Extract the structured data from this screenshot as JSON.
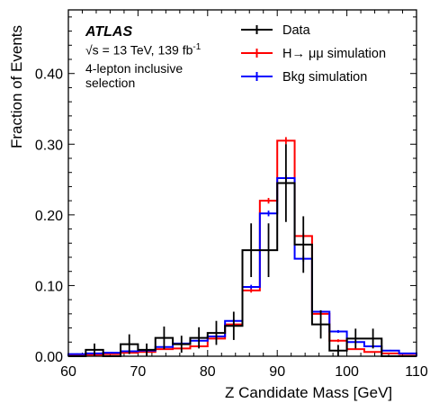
{
  "chart_data": {
    "type": "line",
    "drawstyle": "step-histogram",
    "xlabel": "Z Candidate Mass [GeV]",
    "ylabel": "Fraction of Events",
    "xlim": [
      60,
      110
    ],
    "ylim": [
      0,
      0.49
    ],
    "xticks": [
      "60",
      "70",
      "80",
      "90",
      "100",
      "110"
    ],
    "yticks": [
      "0.00",
      "0.10",
      "0.20",
      "0.30",
      "0.40"
    ],
    "legend_position": "top-right",
    "bin_edges": [
      60,
      62.5,
      65,
      67.5,
      70,
      72.5,
      75,
      77.5,
      80,
      82.5,
      85,
      87.5,
      90,
      92.5,
      95,
      97.5,
      100,
      102.5,
      105,
      107.5,
      110
    ],
    "series": [
      {
        "name": "Data",
        "color": "#000000",
        "values": [
          0.0,
          0.009,
          0.0,
          0.017,
          0.009,
          0.026,
          0.017,
          0.026,
          0.033,
          0.043,
          0.15,
          0.15,
          0.245,
          0.158,
          0.045,
          0.008,
          0.025,
          0.025,
          0.0,
          0.0
        ],
        "errors": [
          0.0,
          0.009,
          0.0,
          0.014,
          0.009,
          0.016,
          0.012,
          0.015,
          0.017,
          0.02,
          0.038,
          0.038,
          0.055,
          0.04,
          0.02,
          0.008,
          0.014,
          0.014,
          0.0,
          0.0
        ]
      },
      {
        "name": "H→ μμ simulation",
        "color": "#ff0000",
        "values": [
          0.002,
          0.002,
          0.003,
          0.005,
          0.006,
          0.01,
          0.011,
          0.014,
          0.025,
          0.045,
          0.093,
          0.22,
          0.305,
          0.17,
          0.06,
          0.022,
          0.01,
          0.006,
          0.004,
          0.003
        ],
        "errors": [
          0.001,
          0.001,
          0.001,
          0.001,
          0.001,
          0.001,
          0.001,
          0.001,
          0.002,
          0.002,
          0.003,
          0.004,
          0.005,
          0.004,
          0.002,
          0.002,
          0.001,
          0.001,
          0.001,
          0.001
        ]
      },
      {
        "name": "Bkg simulation",
        "color": "#0000ff",
        "values": [
          0.003,
          0.004,
          0.005,
          0.007,
          0.008,
          0.013,
          0.018,
          0.022,
          0.028,
          0.05,
          0.098,
          0.202,
          0.252,
          0.138,
          0.063,
          0.035,
          0.02,
          0.014,
          0.008,
          0.004
        ],
        "errors": [
          0.001,
          0.001,
          0.001,
          0.001,
          0.001,
          0.001,
          0.001,
          0.001,
          0.002,
          0.002,
          0.003,
          0.004,
          0.005,
          0.004,
          0.002,
          0.002,
          0.001,
          0.001,
          0.001,
          0.001
        ]
      }
    ]
  },
  "annotations": {
    "experiment": "ATLAS",
    "energy_text": "√s = 13 TeV, 139 fb",
    "energy_sup": "-1",
    "selection_line1": "4-lepton inclusive",
    "selection_line2": "selection"
  }
}
